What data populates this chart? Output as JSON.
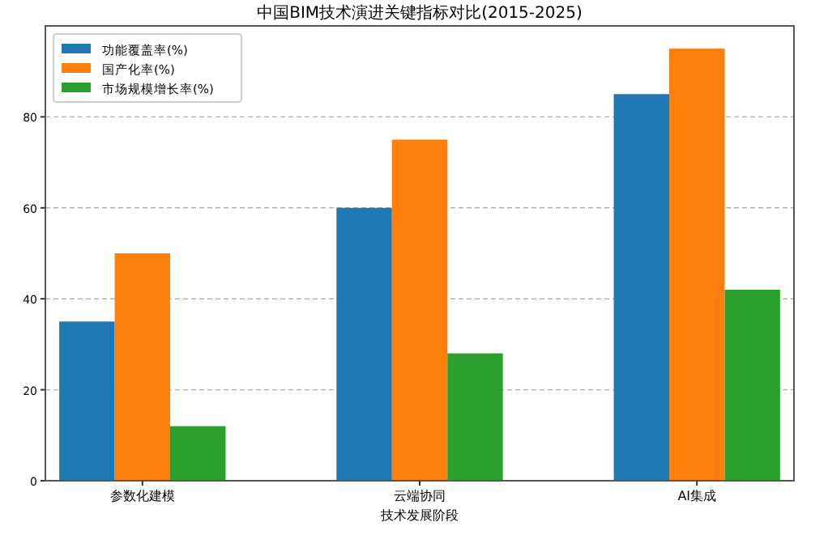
{
  "chart_data": {
    "type": "bar",
    "title": "中国BIM技术演进关键指标对比(2015-2025)",
    "xlabel": "技术发展阶段",
    "categories": [
      "参数化建模",
      "云端协同",
      "AI集成"
    ],
    "series": [
      {
        "name": "功能覆盖率(%)",
        "color": "#1f77b4",
        "values": [
          35,
          60,
          85
        ]
      },
      {
        "name": "国产化率(%)",
        "color": "#ff7f0e",
        "values": [
          50,
          75,
          95
        ]
      },
      {
        "name": "市场规模增长率(%)",
        "color": "#2ca02c",
        "values": [
          12,
          28,
          42
        ]
      }
    ],
    "ylim": [
      0,
      100
    ],
    "yticks": [
      0,
      20,
      40,
      60,
      80
    ],
    "grid": "y",
    "legend": "top left"
  }
}
